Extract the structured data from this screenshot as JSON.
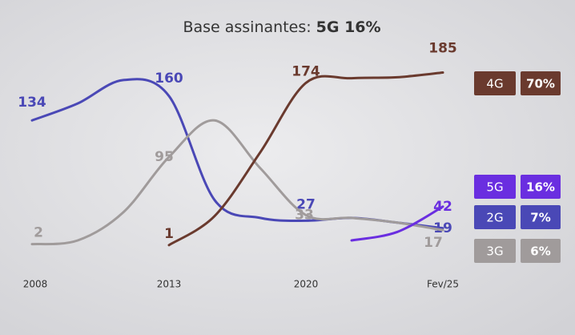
{
  "chart_data": {
    "type": "line",
    "title": "Base assinantes:",
    "title_highlight": "5G 16%",
    "categories": [
      "2008",
      null,
      null,
      "2013",
      null,
      null,
      "2020",
      null,
      null,
      "Fev/25"
    ],
    "ylim": [
      0,
      200
    ],
    "series": [
      {
        "name": "2G",
        "color": "#4a48b6",
        "share": 7,
        "share_label": "7%",
        "values": [
          134,
          152,
          177,
          160,
          49,
          30,
          27,
          30,
          25,
          19
        ]
      },
      {
        "name": "3G",
        "color": "#a09b9b",
        "share": 6,
        "share_label": "6%",
        "values": [
          2,
          6,
          36,
          95,
          134,
          83,
          33,
          30,
          25,
          17
        ]
      },
      {
        "name": "4G",
        "color": "#6a3a2e",
        "share": 70,
        "share_label": "70%",
        "values": [
          null,
          null,
          null,
          1,
          32,
          100,
          174,
          179,
          180,
          185
        ]
      },
      {
        "name": "5G",
        "color": "#6a2ee0",
        "share": 16,
        "share_label": "16%",
        "values": [
          null,
          null,
          null,
          null,
          null,
          null,
          null,
          6,
          15,
          42
        ]
      }
    ]
  }
}
